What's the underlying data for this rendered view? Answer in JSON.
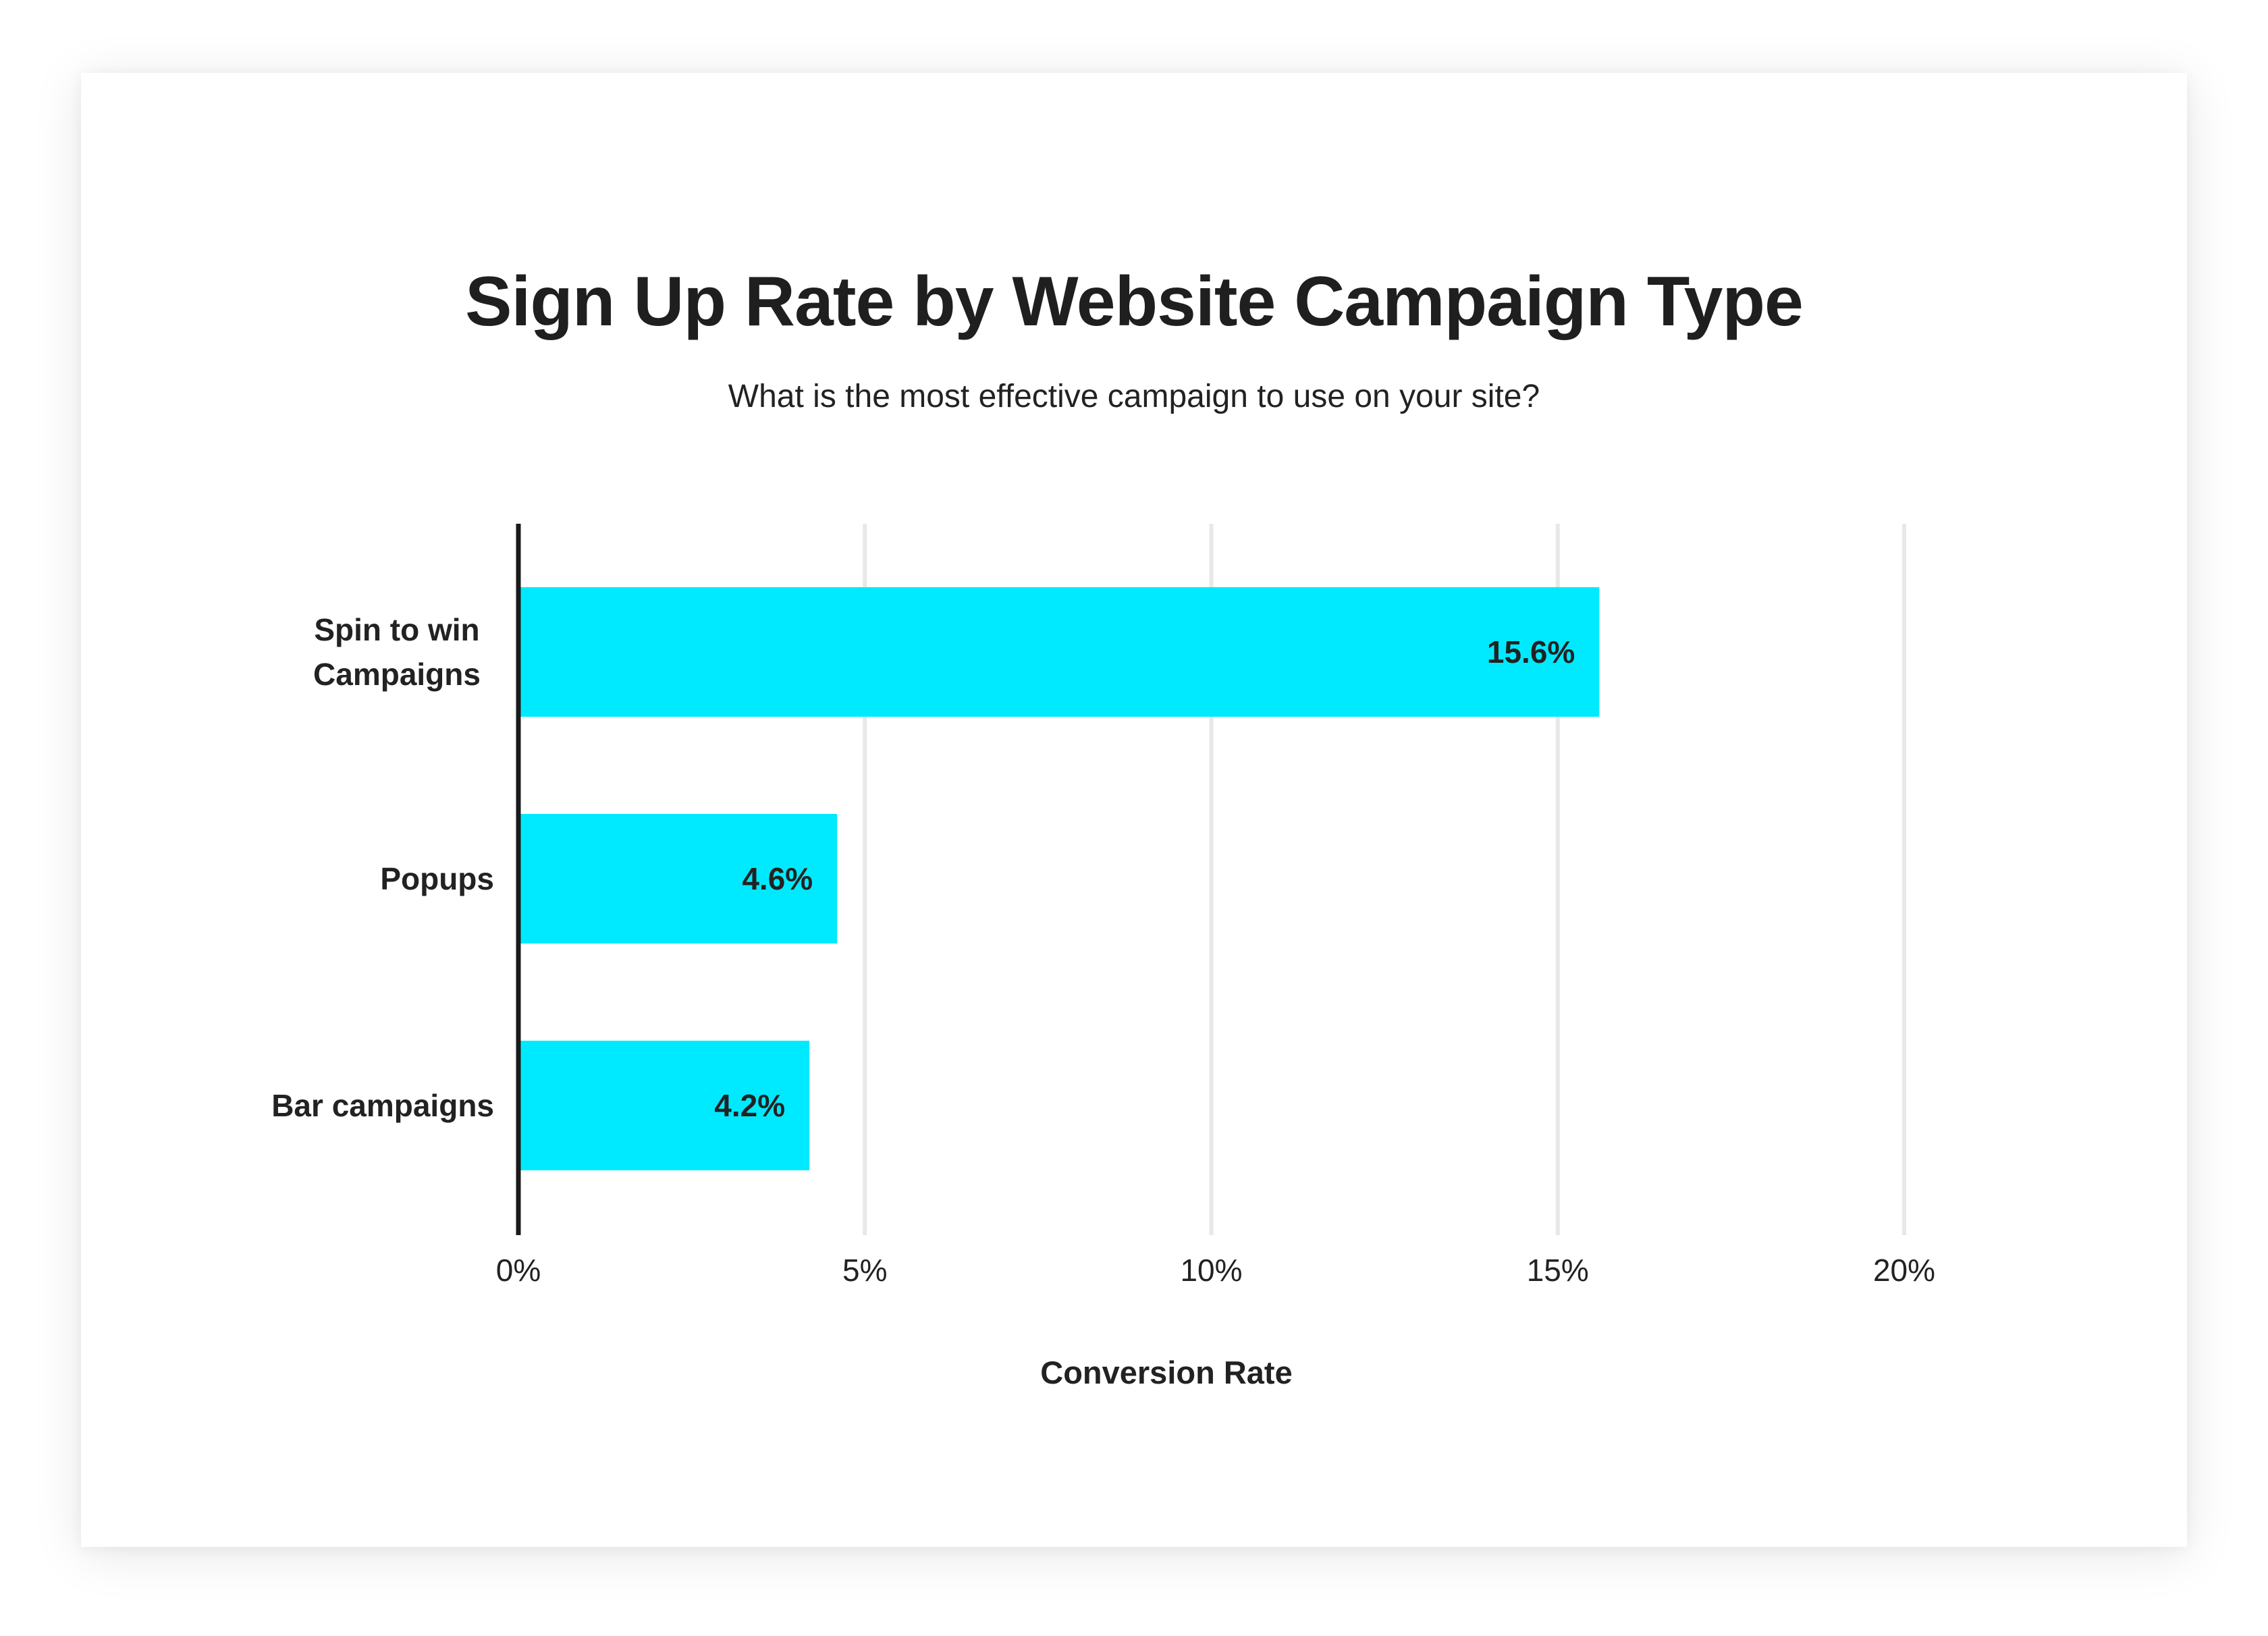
{
  "chart_data": {
    "type": "bar",
    "orientation": "horizontal",
    "title": "Sign Up Rate by Website Campaign Type",
    "subtitle": "What is the most effective campaign to use on your site?",
    "categories": [
      "Spin to win Campaigns",
      "Popups",
      "Bar campaigns"
    ],
    "category_lines": [
      [
        "Spin to win",
        "Campaigns"
      ],
      [
        "Popups"
      ],
      [
        "Bar campaigns"
      ]
    ],
    "values": [
      15.6,
      4.6,
      4.2
    ],
    "value_labels": [
      "15.6%",
      "4.6%",
      "4.2%"
    ],
    "xlabel": "Conversion Rate",
    "ylabel": "",
    "xlim": [
      0,
      20
    ],
    "xticks": [
      0,
      5,
      10,
      15,
      20
    ],
    "xtick_labels": [
      "0%",
      "5%",
      "10%",
      "15%",
      "20%"
    ],
    "grid": "vertical",
    "colors": {
      "bar": "#00EAFF",
      "grid": "#E8E8E8",
      "axis": "#1A1A1A",
      "text": "#222222"
    }
  }
}
